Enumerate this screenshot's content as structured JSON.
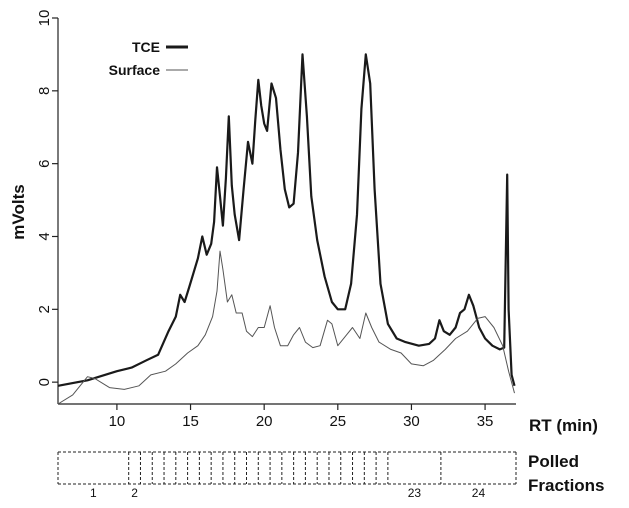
{
  "chart_data": {
    "type": "line",
    "xlabel": "RT (min)",
    "ylabel": "mVolts",
    "xlim": [
      6,
      37.1
    ],
    "ylim": [
      -0.6,
      10
    ],
    "x_ticks": [
      10,
      15,
      20,
      25,
      30,
      35
    ],
    "y_ticks": [
      0,
      2,
      4,
      6,
      8,
      10
    ],
    "grid": false,
    "legend_position": "top-left",
    "series": [
      {
        "name": "TCE",
        "style": "thick",
        "color": "#1a1a1a",
        "points": [
          [
            6,
            -0.1
          ],
          [
            8,
            0.05
          ],
          [
            10,
            0.3
          ],
          [
            11,
            0.4
          ],
          [
            12,
            0.6
          ],
          [
            12.8,
            0.75
          ],
          [
            13.5,
            1.4
          ],
          [
            14,
            1.8
          ],
          [
            14.3,
            2.4
          ],
          [
            14.6,
            2.2
          ],
          [
            14.9,
            2.6
          ],
          [
            15.2,
            3.0
          ],
          [
            15.5,
            3.4
          ],
          [
            15.8,
            4.0
          ],
          [
            16.1,
            3.5
          ],
          [
            16.4,
            3.8
          ],
          [
            16.6,
            4.4
          ],
          [
            16.8,
            5.9
          ],
          [
            17.0,
            5.1
          ],
          [
            17.2,
            4.3
          ],
          [
            17.4,
            5.6
          ],
          [
            17.6,
            7.3
          ],
          [
            17.8,
            5.4
          ],
          [
            18.0,
            4.6
          ],
          [
            18.3,
            3.9
          ],
          [
            18.6,
            5.3
          ],
          [
            18.9,
            6.6
          ],
          [
            19.2,
            6.0
          ],
          [
            19.4,
            7.2
          ],
          [
            19.6,
            8.3
          ],
          [
            19.8,
            7.6
          ],
          [
            20.0,
            7.1
          ],
          [
            20.2,
            6.9
          ],
          [
            20.5,
            8.2
          ],
          [
            20.8,
            7.8
          ],
          [
            21.1,
            6.4
          ],
          [
            21.4,
            5.3
          ],
          [
            21.7,
            4.8
          ],
          [
            22.0,
            4.9
          ],
          [
            22.3,
            6.3
          ],
          [
            22.6,
            9.0
          ],
          [
            22.9,
            7.3
          ],
          [
            23.2,
            5.1
          ],
          [
            23.6,
            3.9
          ],
          [
            24.1,
            2.9
          ],
          [
            24.6,
            2.2
          ],
          [
            25.0,
            2.0
          ],
          [
            25.5,
            2.0
          ],
          [
            25.9,
            2.7
          ],
          [
            26.3,
            4.6
          ],
          [
            26.6,
            7.5
          ],
          [
            26.9,
            9.0
          ],
          [
            27.2,
            8.2
          ],
          [
            27.5,
            5.3
          ],
          [
            27.9,
            2.7
          ],
          [
            28.4,
            1.6
          ],
          [
            29.0,
            1.2
          ],
          [
            29.6,
            1.1
          ],
          [
            30.5,
            1.0
          ],
          [
            31.2,
            1.05
          ],
          [
            31.6,
            1.2
          ],
          [
            31.9,
            1.7
          ],
          [
            32.2,
            1.4
          ],
          [
            32.6,
            1.3
          ],
          [
            33.0,
            1.5
          ],
          [
            33.3,
            1.9
          ],
          [
            33.6,
            2.0
          ],
          [
            33.9,
            2.4
          ],
          [
            34.2,
            2.1
          ],
          [
            34.6,
            1.5
          ],
          [
            35.0,
            1.2
          ],
          [
            35.5,
            1.0
          ],
          [
            36.0,
            0.9
          ],
          [
            36.3,
            0.95
          ],
          [
            36.5,
            5.7
          ],
          [
            36.6,
            2.0
          ],
          [
            36.8,
            0.2
          ],
          [
            37.0,
            -0.1
          ]
        ]
      },
      {
        "name": "Surface",
        "style": "thin",
        "color": "#555555",
        "points": [
          [
            6,
            -0.6
          ],
          [
            7.0,
            -0.35
          ],
          [
            8.0,
            0.15
          ],
          [
            8.5,
            0.1
          ],
          [
            9.5,
            -0.15
          ],
          [
            10.5,
            -0.2
          ],
          [
            11.5,
            -0.1
          ],
          [
            12.3,
            0.2
          ],
          [
            13.3,
            0.3
          ],
          [
            14.0,
            0.5
          ],
          [
            14.8,
            0.8
          ],
          [
            15.5,
            1.0
          ],
          [
            16.0,
            1.3
          ],
          [
            16.5,
            1.8
          ],
          [
            16.8,
            2.5
          ],
          [
            17.0,
            3.6
          ],
          [
            17.2,
            3.1
          ],
          [
            17.5,
            2.2
          ],
          [
            17.8,
            2.4
          ],
          [
            18.1,
            1.9
          ],
          [
            18.5,
            1.9
          ],
          [
            18.8,
            1.4
          ],
          [
            19.2,
            1.25
          ],
          [
            19.6,
            1.5
          ],
          [
            20.0,
            1.5
          ],
          [
            20.4,
            2.1
          ],
          [
            20.7,
            1.5
          ],
          [
            21.1,
            1.0
          ],
          [
            21.6,
            1.0
          ],
          [
            22.0,
            1.3
          ],
          [
            22.4,
            1.5
          ],
          [
            22.8,
            1.1
          ],
          [
            23.3,
            0.95
          ],
          [
            23.8,
            1.0
          ],
          [
            24.3,
            1.7
          ],
          [
            24.6,
            1.6
          ],
          [
            25.0,
            1.0
          ],
          [
            25.6,
            1.3
          ],
          [
            26.0,
            1.5
          ],
          [
            26.5,
            1.2
          ],
          [
            26.9,
            1.9
          ],
          [
            27.3,
            1.5
          ],
          [
            27.8,
            1.1
          ],
          [
            28.6,
            0.9
          ],
          [
            29.3,
            0.8
          ],
          [
            30.0,
            0.5
          ],
          [
            30.8,
            0.45
          ],
          [
            31.5,
            0.6
          ],
          [
            32.3,
            0.9
          ],
          [
            33.0,
            1.2
          ],
          [
            33.8,
            1.4
          ],
          [
            34.5,
            1.75
          ],
          [
            35.0,
            1.8
          ],
          [
            35.6,
            1.5
          ],
          [
            36.2,
            1.0
          ],
          [
            36.6,
            0.3
          ],
          [
            37.0,
            -0.3
          ]
        ]
      }
    ]
  },
  "fractions": {
    "label_line1": "Polled",
    "label_line2": "Fractions",
    "start": 6,
    "end": 37.1,
    "dividers": [
      10.8,
      11.6,
      12.4,
      13.2,
      14.0,
      14.8,
      15.6,
      16.4,
      17.2,
      18.0,
      18.8,
      19.6,
      20.4,
      21.2,
      22.0,
      22.8,
      23.6,
      24.4,
      25.2,
      26.0,
      26.8,
      27.6,
      28.4,
      32.0
    ],
    "numbers": [
      "1",
      "2",
      "23",
      "24"
    ]
  }
}
